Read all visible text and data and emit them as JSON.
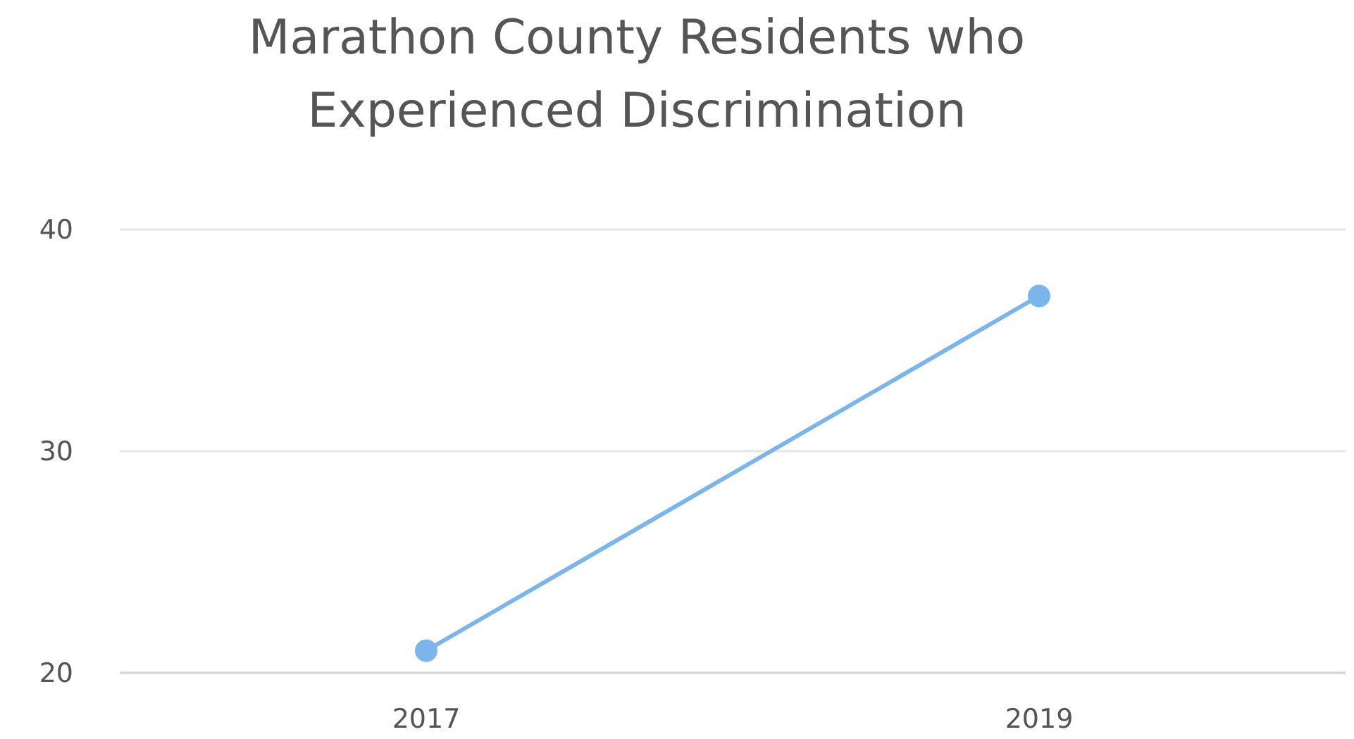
{
  "chart_data": {
    "type": "line",
    "title": "Marathon County Residents who Experienced Discrimination",
    "categories": [
      "2017",
      "2019"
    ],
    "series": [
      {
        "color": "#7cb5ec",
        "values": [
          21,
          37
        ]
      }
    ],
    "ylim": [
      20,
      40
    ],
    "yticks": [
      20,
      30,
      40
    ],
    "grid": "y",
    "marker": "circle"
  }
}
